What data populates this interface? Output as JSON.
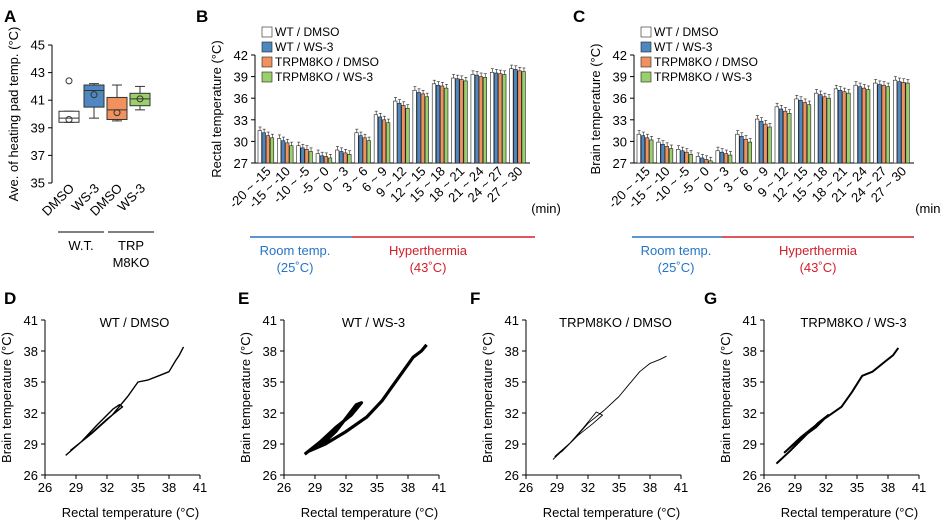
{
  "figure": {
    "panel_letters": [
      "A",
      "B",
      "C",
      "D",
      "E",
      "F",
      "G"
    ],
    "legend": [
      "WT / DMSO",
      "WT / WS-3",
      "TRPM8KO / DMSO",
      "TRPM8KO / WS-3"
    ],
    "phase_labels": {
      "room": "Room temp.",
      "room_temp": "(25˚C)",
      "hyper": "Hyperthermia",
      "hyper_temp": "(43˚C)"
    },
    "min_label": "(min)"
  },
  "colors": {
    "wt_dmso": "#ffffff",
    "wt_ws3": "#4f87c0",
    "ko_dmso": "#f0915e",
    "ko_ws3": "#9bcf6b",
    "room_line": "#2475c6",
    "hyper_line": "#d0202a"
  },
  "chart_data": [
    {
      "id": "A",
      "type": "box",
      "ylabel": "Ave. of heating pad temp. (°C)",
      "ylim": [
        35,
        45
      ],
      "yticks": [
        35,
        37,
        39,
        41,
        43,
        45
      ],
      "categories": [
        "DMSO",
        "WS-3",
        "DMSO",
        "WS-3"
      ],
      "groups": [
        "W.T.",
        "TRP",
        "M8KO"
      ],
      "boxes": [
        {
          "min": 39.4,
          "q1": 39.4,
          "median": 39.7,
          "q3": 40.2,
          "max": 40.2,
          "mean": 39.6,
          "outlier": 42.4
        },
        {
          "min": 39.7,
          "q1": 40.5,
          "median": 41.7,
          "q3": 42.1,
          "max": 42.2,
          "mean": 41.4,
          "outlier": null
        },
        {
          "min": 39.5,
          "q1": 39.6,
          "median": 40.3,
          "q3": 41.2,
          "max": 42.1,
          "mean": 40.1,
          "outlier": null
        },
        {
          "min": 40.3,
          "q1": 40.6,
          "median": 41.1,
          "q3": 41.5,
          "max": 42.0,
          "mean": 41.1,
          "outlier": null
        }
      ]
    },
    {
      "id": "B",
      "type": "bar",
      "ylabel": "Rectal temperature (°C)",
      "ylim": [
        27,
        42
      ],
      "yticks": [
        27,
        30,
        33,
        36,
        39,
        42
      ],
      "categories": [
        "-20 ~ -15",
        "-15 ~ -10",
        "-10 ~ -5",
        "-5 ~ 0",
        "0 ~ 3",
        "3 ~ 6",
        "6 ~ 9",
        "9 ~ 12",
        "12 ~ 15",
        "15 ~ 18",
        "18 ~ 21",
        "21 ~ 24",
        "24 ~ 27",
        "27 ~ 30"
      ],
      "series": [
        {
          "name": "WT / DMSO",
          "values": [
            31.5,
            30.4,
            29.4,
            28.3,
            28.8,
            31.2,
            33.7,
            35.6,
            37.1,
            38.0,
            38.8,
            39.3,
            39.6,
            40.1
          ]
        },
        {
          "name": "WT / WS-3",
          "values": [
            31.2,
            30.1,
            29.1,
            28.0,
            28.6,
            30.8,
            33.4,
            35.3,
            36.8,
            37.8,
            38.7,
            39.2,
            39.5,
            40.0
          ]
        },
        {
          "name": "TRPM8KO / DMSO",
          "values": [
            30.8,
            29.8,
            28.9,
            27.9,
            28.4,
            30.5,
            33.0,
            35.0,
            36.6,
            37.7,
            38.6,
            39.0,
            39.4,
            39.8
          ]
        },
        {
          "name": "TRPM8KO / WS-3",
          "values": [
            30.5,
            29.4,
            28.6,
            27.7,
            28.2,
            30.1,
            32.6,
            34.6,
            36.2,
            37.4,
            38.4,
            38.9,
            39.3,
            39.7
          ]
        }
      ],
      "errors": 0.5
    },
    {
      "id": "C",
      "type": "bar",
      "ylabel": "Brain temperature (°C)",
      "ylim": [
        27,
        42
      ],
      "yticks": [
        27,
        30,
        33,
        36,
        39,
        42
      ],
      "categories": [
        "-20 ~ -15",
        "-15 ~ -10",
        "-10 ~ -5",
        "-5 ~ 0",
        "0 ~ 3",
        "3 ~ 6",
        "6 ~ 9",
        "9 ~ 12",
        "12 ~ 15",
        "15 ~ 18",
        "18 ~ 21",
        "21 ~ 24",
        "24 ~ 27",
        "27 ~ 30"
      ],
      "series": [
        {
          "name": "WT / DMSO",
          "values": [
            31.0,
            29.9,
            28.9,
            27.9,
            28.7,
            31.0,
            33.1,
            34.8,
            35.9,
            36.7,
            37.3,
            37.8,
            38.1,
            38.5
          ]
        },
        {
          "name": "WT / WS-3",
          "values": [
            30.8,
            29.6,
            28.7,
            27.7,
            28.5,
            30.7,
            32.8,
            34.5,
            35.7,
            36.5,
            37.1,
            37.6,
            37.9,
            38.3
          ]
        },
        {
          "name": "TRPM8KO / DMSO",
          "values": [
            30.5,
            29.3,
            28.5,
            27.5,
            28.3,
            30.3,
            32.4,
            34.2,
            35.4,
            36.2,
            36.9,
            37.4,
            37.8,
            38.2
          ]
        },
        {
          "name": "TRPM8KO / WS-3",
          "values": [
            30.2,
            29.0,
            28.2,
            27.3,
            28.1,
            29.9,
            32.0,
            33.9,
            35.1,
            36.0,
            36.7,
            37.2,
            37.6,
            38.1
          ]
        }
      ],
      "errors": 0.5
    },
    {
      "id": "D",
      "type": "line",
      "title": "WT / DMSO",
      "xlabel": "Rectal temperature (°C)",
      "ylabel": "Brain temperature (°C)",
      "xlim": [
        26,
        41
      ],
      "ylim": [
        26,
        41
      ],
      "xticks": [
        26,
        29,
        32,
        35,
        38,
        41
      ],
      "yticks": [
        26,
        29,
        32,
        35,
        38,
        41
      ],
      "points": [
        [
          28.0,
          27.9
        ],
        [
          29.5,
          29.2
        ],
        [
          31.0,
          30.8
        ],
        [
          32.6,
          32.4
        ],
        [
          33.2,
          32.8
        ],
        [
          33.5,
          32.6
        ],
        [
          32.0,
          31.4
        ],
        [
          30.0,
          29.6
        ],
        [
          28.5,
          28.4
        ],
        [
          30.5,
          30.0
        ],
        [
          32.5,
          31.8
        ],
        [
          34.0,
          33.6
        ],
        [
          35.0,
          35.0
        ],
        [
          36.0,
          35.2
        ],
        [
          37.0,
          35.6
        ],
        [
          38.0,
          36.0
        ],
        [
          38.6,
          37.0
        ],
        [
          39.0,
          37.6
        ],
        [
          39.4,
          38.4
        ]
      ],
      "line_width": 1.4
    },
    {
      "id": "E",
      "type": "line",
      "title": "WT / WS-3",
      "xlabel": "Rectal temperature (°C)",
      "ylabel": "Brain temperature (°C)",
      "xlim": [
        26,
        41
      ],
      "ylim": [
        26,
        41
      ],
      "xticks": [
        26,
        29,
        32,
        35,
        38,
        41
      ],
      "yticks": [
        26,
        29,
        32,
        35,
        38,
        41
      ],
      "points": [
        [
          28.0,
          28.0
        ],
        [
          29.5,
          29.2
        ],
        [
          31.0,
          30.6
        ],
        [
          32.5,
          31.8
        ],
        [
          33.5,
          33.0
        ],
        [
          33.0,
          32.8
        ],
        [
          31.0,
          30.2
        ],
        [
          29.5,
          28.8
        ],
        [
          28.4,
          28.3
        ],
        [
          30.0,
          29.0
        ],
        [
          32.0,
          30.2
        ],
        [
          34.0,
          31.6
        ],
        [
          35.5,
          33.2
        ],
        [
          36.5,
          34.6
        ],
        [
          37.5,
          36.0
        ],
        [
          38.5,
          37.4
        ],
        [
          39.3,
          38.0
        ],
        [
          39.8,
          38.6
        ]
      ],
      "line_width": 3.2
    },
    {
      "id": "F",
      "type": "line",
      "title": "TRPM8KO / DMSO",
      "xlabel": "Rectal temperature (°C)",
      "ylabel": "Brain temperature (°C)",
      "xlim": [
        26,
        41
      ],
      "ylim": [
        26,
        41
      ],
      "xticks": [
        26,
        29,
        32,
        35,
        38,
        41
      ],
      "yticks": [
        26,
        29,
        32,
        35,
        38,
        41
      ],
      "points": [
        [
          28.6,
          27.5
        ],
        [
          30.0,
          28.8
        ],
        [
          31.5,
          30.5
        ],
        [
          32.8,
          32.1
        ],
        [
          33.4,
          31.8
        ],
        [
          32.5,
          31.0
        ],
        [
          31.0,
          29.8
        ],
        [
          29.5,
          28.3
        ],
        [
          28.8,
          27.8
        ],
        [
          30.5,
          29.3
        ],
        [
          32.0,
          31.0
        ],
        [
          33.5,
          32.2
        ],
        [
          35.0,
          33.6
        ],
        [
          36.0,
          34.8
        ],
        [
          37.0,
          36.0
        ],
        [
          38.0,
          36.8
        ],
        [
          39.0,
          37.2
        ],
        [
          39.6,
          37.5
        ]
      ],
      "line_width": 0.9
    },
    {
      "id": "G",
      "type": "line",
      "title": "TRPM8KO / WS-3",
      "xlabel": "Rectal temperature (°C)",
      "ylabel": "Brain temperature (°C)",
      "xlim": [
        26,
        41
      ],
      "ylim": [
        26,
        41
      ],
      "xticks": [
        26,
        29,
        32,
        35,
        38,
        41
      ],
      "yticks": [
        26,
        29,
        32,
        35,
        38,
        41
      ],
      "points": [
        [
          27.2,
          27.1
        ],
        [
          28.5,
          28.3
        ],
        [
          30.0,
          29.8
        ],
        [
          31.2,
          31.0
        ],
        [
          32.2,
          31.8
        ],
        [
          31.0,
          30.6
        ],
        [
          29.5,
          29.5
        ],
        [
          28.0,
          28.2
        ],
        [
          29.5,
          29.6
        ],
        [
          31.5,
          31.2
        ],
        [
          33.5,
          32.6
        ],
        [
          34.5,
          34.0
        ],
        [
          35.5,
          35.6
        ],
        [
          36.5,
          36.0
        ],
        [
          37.5,
          36.8
        ],
        [
          38.5,
          37.6
        ],
        [
          39.0,
          38.3
        ]
      ],
      "line_width": 2.0
    }
  ]
}
